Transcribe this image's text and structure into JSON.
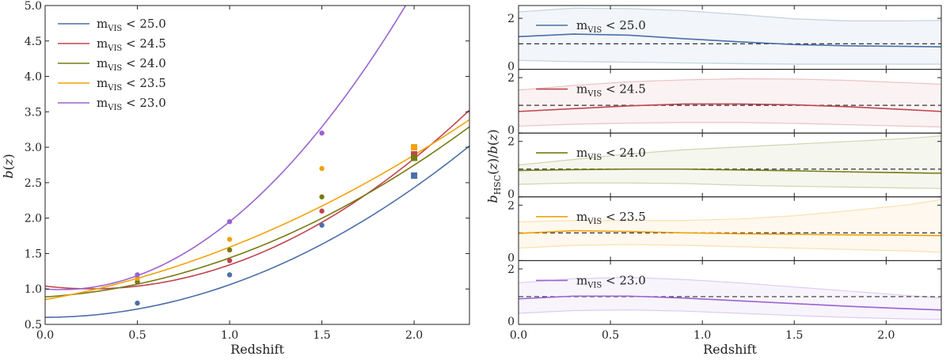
{
  "chart_data": [
    {
      "type": "line",
      "title": "",
      "xlabel": "Redshift",
      "ylabel": "b(z)",
      "xlim": [
        0.0,
        2.3
      ],
      "ylim": [
        0.5,
        5.0
      ],
      "xticks": [
        "0.0",
        "0.5",
        "1.0",
        "1.5",
        "2.0"
      ],
      "yticks": [
        "0.5",
        "1.0",
        "1.5",
        "2.0",
        "2.5",
        "3.0",
        "3.5",
        "4.0",
        "4.5",
        "5.0"
      ],
      "legend_position": "top-left",
      "series": [
        {
          "name": "m_VIS < 25.0",
          "legend_main": "m",
          "legend_sub": "VIS",
          "legend_rest": " < 25.0",
          "color": "#4b6fa8",
          "fit": {
            "a": 0.6,
            "b": 0.005,
            "c": 0.455
          },
          "points": [
            {
              "x": 0.5,
              "y": 0.8
            },
            {
              "x": 1.0,
              "y": 1.2
            },
            {
              "x": 1.5,
              "y": 1.9
            }
          ],
          "square_point": {
            "x": 2.0,
            "y": 2.6
          }
        },
        {
          "name": "m_VIS < 24.5",
          "legend_main": "m",
          "legend_sub": "VIS",
          "legend_rest": " < 24.5",
          "color": "#c0444f",
          "fit": {
            "a": 1.04,
            "b": -0.3,
            "c": 0.6
          },
          "points": [
            {
              "x": 0.5,
              "y": 1.1
            },
            {
              "x": 1.0,
              "y": 1.4
            },
            {
              "x": 1.5,
              "y": 2.1
            }
          ],
          "square_point": {
            "x": 2.0,
            "y": 2.9
          }
        },
        {
          "name": "m_VIS < 24.0",
          "legend_main": "m",
          "legend_sub": "VIS",
          "legend_rest": " < 24.0",
          "color": "#777a12",
          "fit": {
            "a": 0.888,
            "b": 0.17,
            "c": 0.38
          },
          "points": [
            {
              "x": 0.5,
              "y": 1.1
            },
            {
              "x": 1.0,
              "y": 1.55
            },
            {
              "x": 1.5,
              "y": 2.3
            }
          ],
          "square_point": {
            "x": 2.0,
            "y": 2.85
          }
        },
        {
          "name": "m_VIS < 23.5",
          "legend_main": "m",
          "legend_sub": "VIS",
          "legend_rest": " < 23.5",
          "color": "#f2a20c",
          "fit": {
            "a": 0.85,
            "b": 0.46,
            "c": 0.28
          },
          "points": [
            {
              "x": 0.5,
              "y": 1.15
            },
            {
              "x": 1.0,
              "y": 1.7
            },
            {
              "x": 1.5,
              "y": 2.7
            }
          ],
          "square_point": {
            "x": 2.0,
            "y": 3.0
          }
        },
        {
          "name": "m_VIS < 23.0",
          "legend_main": "m",
          "legend_sub": "VIS",
          "legend_rest": " < 23.0",
          "color": "#9a63d1",
          "fit": {
            "a": 1.0,
            "b": -0.2,
            "c": 1.15
          },
          "points": [
            {
              "x": 0.5,
              "y": 1.2
            },
            {
              "x": 1.0,
              "y": 1.95
            },
            {
              "x": 1.5,
              "y": 3.2
            }
          ],
          "square_point": null
        }
      ]
    },
    {
      "type": "line",
      "title": "",
      "xlabel": "Redshift",
      "ylabel": "b_HSC(z)/b(z)",
      "xlim": [
        0.0,
        2.3
      ],
      "xticks": [
        "0.0",
        "0.5",
        "1.0",
        "1.5",
        "2.0"
      ],
      "reference_line": 1.0,
      "panels": [
        {
          "name": "m_VIS < 25.0",
          "legend_main": "m",
          "legend_sub": "VIS",
          "legend_rest": " < 25.0",
          "color": "#4b6fa8",
          "ylim": [
            0,
            2.5
          ],
          "yticks": [
            "0",
            "2"
          ],
          "x": [
            0.0,
            0.3,
            0.6,
            0.9,
            1.2,
            1.5,
            1.8,
            2.1,
            2.3
          ],
          "ratio": [
            1.28,
            1.38,
            1.34,
            1.2,
            1.08,
            0.97,
            0.92,
            0.9,
            0.88
          ],
          "upper": [
            2.25,
            2.4,
            2.38,
            2.3,
            2.15,
            1.98,
            1.9,
            1.9,
            1.92
          ],
          "lower": [
            0.35,
            0.3,
            0.28,
            0.25,
            0.22,
            0.2,
            0.2,
            0.2,
            0.2
          ]
        },
        {
          "name": "m_VIS < 24.5",
          "legend_main": "m",
          "legend_sub": "VIS",
          "legend_rest": " < 24.5",
          "color": "#c0444f",
          "ylim": [
            0,
            2.3
          ],
          "yticks": [
            "0",
            "2"
          ],
          "x": [
            0.0,
            0.3,
            0.6,
            0.9,
            1.2,
            1.5,
            1.8,
            2.1,
            2.3
          ],
          "ratio": [
            0.78,
            0.88,
            0.98,
            1.05,
            1.05,
            1.02,
            0.95,
            0.85,
            0.78
          ],
          "upper": [
            1.55,
            1.72,
            1.85,
            1.92,
            1.96,
            1.95,
            1.9,
            1.82,
            1.76
          ],
          "lower": [
            0.25,
            0.32,
            0.36,
            0.38,
            0.38,
            0.35,
            0.3,
            0.25,
            0.22
          ]
        },
        {
          "name": "m_VIS < 24.0",
          "legend_main": "m",
          "legend_sub": "VIS",
          "legend_rest": " < 24.0",
          "color": "#777a12",
          "ylim": [
            0,
            2.3
          ],
          "yticks": [
            "0",
            "2"
          ],
          "x": [
            0.0,
            0.3,
            0.6,
            0.9,
            1.2,
            1.5,
            1.8,
            2.1,
            2.3
          ],
          "ratio": [
            0.95,
            0.98,
            1.0,
            1.0,
            0.97,
            0.94,
            0.9,
            0.87,
            0.85
          ],
          "upper": [
            1.15,
            1.35,
            1.55,
            1.7,
            1.8,
            1.9,
            2.0,
            2.1,
            2.2
          ],
          "lower": [
            0.45,
            0.5,
            0.5,
            0.48,
            0.42,
            0.38,
            0.35,
            0.32,
            0.3
          ]
        },
        {
          "name": "m_VIS < 23.5",
          "legend_main": "m",
          "legend_sub": "VIS",
          "legend_rest": " < 23.5",
          "color": "#f2a20c",
          "ylim": [
            0,
            2.3
          ],
          "yticks": [
            "0",
            "2"
          ],
          "x": [
            0.0,
            0.3,
            0.6,
            0.9,
            1.2,
            1.5,
            1.8,
            2.1,
            2.3
          ],
          "ratio": [
            0.98,
            1.08,
            1.05,
            1.0,
            0.97,
            0.95,
            0.93,
            0.92,
            0.9
          ],
          "upper": [
            1.4,
            1.45,
            1.45,
            1.45,
            1.5,
            1.62,
            1.8,
            2.0,
            2.2
          ],
          "lower": [
            0.45,
            0.55,
            0.58,
            0.55,
            0.5,
            0.45,
            0.4,
            0.35,
            0.3
          ]
        },
        {
          "name": "m_VIS < 23.0",
          "legend_main": "m",
          "legend_sub": "VIS",
          "legend_rest": " < 23.0",
          "color": "#9a63d1",
          "ylim": [
            0,
            2.3
          ],
          "yticks": [
            "0",
            "2"
          ],
          "x": [
            0.0,
            0.3,
            0.6,
            0.9,
            1.2,
            1.5,
            1.8,
            2.1,
            2.3
          ],
          "ratio": [
            0.92,
            1.02,
            1.02,
            0.95,
            0.85,
            0.75,
            0.65,
            0.57,
            0.52
          ],
          "upper": [
            1.5,
            1.65,
            1.7,
            1.62,
            1.5,
            1.35,
            1.2,
            1.05,
            0.95
          ],
          "lower": [
            0.4,
            0.5,
            0.52,
            0.48,
            0.4,
            0.32,
            0.25,
            0.2,
            0.18
          ]
        }
      ]
    }
  ]
}
